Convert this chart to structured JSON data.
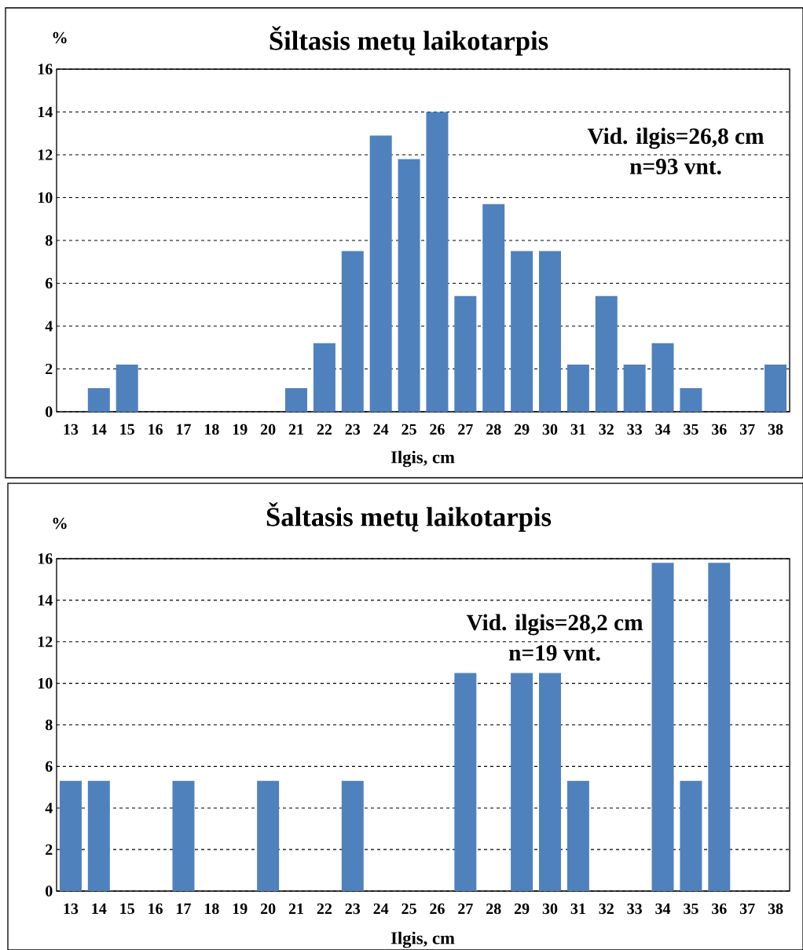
{
  "chart_data": [
    {
      "type": "bar",
      "title": "Šiltasis metų laikotarpis",
      "xlabel": "Ilgis, cm",
      "ylabel": "%",
      "categories": [
        "13",
        "14",
        "15",
        "16",
        "17",
        "18",
        "19",
        "20",
        "21",
        "22",
        "23",
        "24",
        "25",
        "26",
        "27",
        "28",
        "29",
        "30",
        "31",
        "32",
        "33",
        "34",
        "35",
        "36",
        "37",
        "38"
      ],
      "values": [
        0,
        1.1,
        2.2,
        0,
        0,
        0,
        0,
        0,
        1.1,
        3.2,
        7.5,
        12.9,
        11.8,
        14.0,
        5.4,
        9.7,
        7.5,
        7.5,
        2.2,
        5.4,
        2.2,
        3.2,
        1.1,
        0,
        0,
        2.2
      ],
      "color": "#4f81bd",
      "ylim": [
        0,
        16
      ],
      "yticks": [
        0,
        2,
        4,
        6,
        8,
        10,
        12,
        14,
        16
      ],
      "grid": "y",
      "annotations": [
        "Vid. ilgis=26,8 cm",
        "n=93 vnt."
      ]
    },
    {
      "type": "bar",
      "title": "Šaltasis metų laikotarpis",
      "xlabel": "Ilgis, cm",
      "ylabel": "%",
      "categories": [
        "13",
        "14",
        "15",
        "16",
        "17",
        "18",
        "19",
        "20",
        "21",
        "22",
        "23",
        "24",
        "25",
        "26",
        "27",
        "28",
        "29",
        "30",
        "31",
        "32",
        "33",
        "34",
        "35",
        "36",
        "37",
        "38"
      ],
      "values": [
        5.3,
        5.3,
        0,
        0,
        5.3,
        0,
        0,
        5.3,
        0,
        0,
        5.3,
        0,
        0,
        0,
        10.5,
        0,
        10.5,
        10.5,
        5.3,
        0,
        0,
        15.8,
        5.3,
        15.8,
        0,
        0
      ],
      "color": "#4f81bd",
      "ylim": [
        0,
        16
      ],
      "yticks": [
        0,
        2,
        4,
        6,
        8,
        10,
        12,
        14,
        16
      ],
      "grid": "y",
      "annotations": [
        "Vid. ilgis=28,2 cm",
        "n=19 vnt."
      ]
    }
  ]
}
